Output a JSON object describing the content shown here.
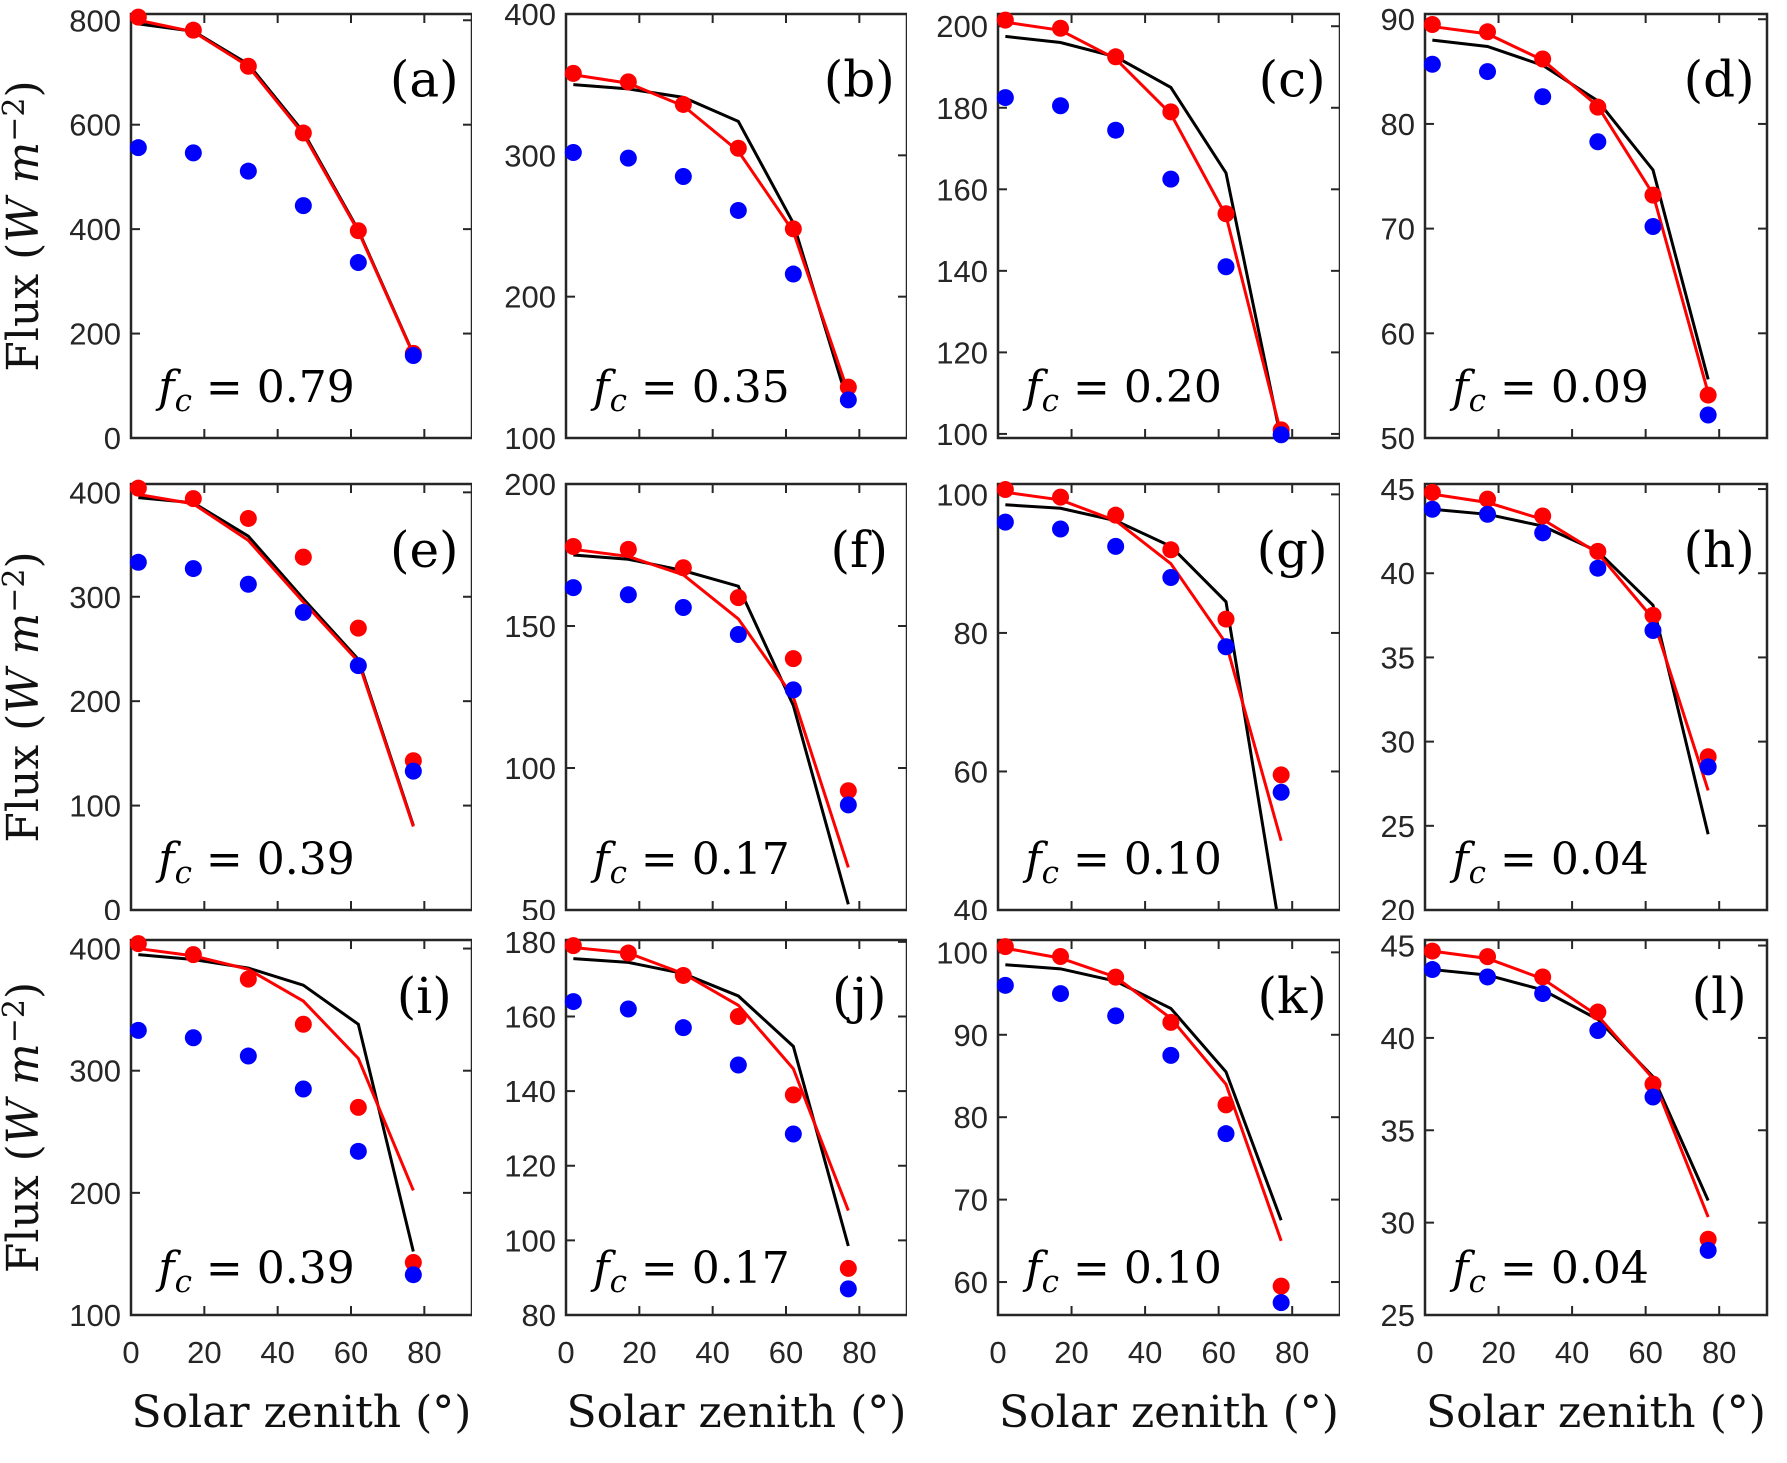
{
  "figure": {
    "description": "3x4 grid of flux versus solar zenith angle panels",
    "colors": {
      "red_series": "#ff0000",
      "blue_series": "#0000ff",
      "black_series": "#000000",
      "axis": "#262626",
      "annotation": "#000000",
      "background": "#ffffff"
    }
  },
  "chart_data": {
    "type": "line+scatter",
    "grid": {
      "rows": 3,
      "cols": 4
    },
    "xlabel": "Solar zenith (°)",
    "ylabel_parts": {
      "pre": "Flux (",
      "italic": "W m",
      "sup": "−2",
      "post": ")"
    },
    "fc_parts": {
      "symbol": "f",
      "subscript": "c",
      "equals": "="
    },
    "x": [
      2,
      17,
      32,
      47,
      62,
      77
    ],
    "xlim": [
      0,
      93
    ],
    "xticks": [
      0,
      20,
      40,
      60,
      80
    ],
    "xtick_labels": [
      "0",
      "20",
      "40",
      "60",
      "80"
    ],
    "series_names": [
      "red_dots",
      "blue_dots",
      "red_line",
      "black_line"
    ],
    "panels": [
      {
        "label": "(a)",
        "fc": "0.79",
        "ylim": [
          0,
          812
        ],
        "yticks": [
          0,
          200,
          400,
          600,
          800
        ],
        "red_dots": [
          806,
          781,
          712,
          584,
          397,
          162
        ],
        "blue_dots": [
          556,
          546,
          511,
          445,
          336,
          158
        ],
        "red_line": [
          800,
          778,
          712,
          582,
          396,
          160
        ],
        "black_line": [
          793,
          779,
          716,
          586,
          398,
          161
        ]
      },
      {
        "label": "(b)",
        "fc": "0.35",
        "ylim": [
          100,
          400
        ],
        "yticks": [
          100,
          200,
          300,
          400
        ],
        "red_dots": [
          358,
          352,
          336,
          305,
          248,
          136
        ],
        "blue_dots": [
          302,
          298,
          285,
          261,
          216,
          127
        ],
        "red_line": [
          357,
          351,
          335,
          303,
          246,
          132
        ],
        "black_line": [
          350,
          347,
          341,
          324,
          252,
          124
        ]
      },
      {
        "label": "(c)",
        "fc": "0.20",
        "ylim": [
          99,
          203
        ],
        "yticks": [
          100,
          120,
          140,
          160,
          180,
          200
        ],
        "red_dots": [
          201.5,
          199.5,
          192.5,
          179,
          154,
          101
        ],
        "blue_dots": [
          182.5,
          180.5,
          174.5,
          162.5,
          141,
          99.8
        ],
        "red_line": [
          201,
          199,
          192,
          178.5,
          153.5,
          100
        ],
        "black_line": [
          197.5,
          196,
          192.5,
          185,
          164,
          98.5
        ]
      },
      {
        "label": "(d)",
        "fc": "0.09",
        "ylim": [
          50,
          90.5
        ],
        "yticks": [
          50,
          60,
          70,
          80,
          90
        ],
        "red_dots": [
          89.5,
          88.8,
          86.2,
          81.6,
          73.2,
          54.1
        ],
        "blue_dots": [
          85.7,
          85,
          82.6,
          78.3,
          70.2,
          52.2
        ],
        "red_line": [
          89.3,
          88.6,
          86.1,
          81.7,
          73.3,
          54.3
        ],
        "black_line": [
          88,
          87.4,
          85.6,
          82.2,
          75.6,
          55.6
        ]
      },
      {
        "label": "(e)",
        "fc": "0.39",
        "ylim": [
          0,
          408
        ],
        "yticks": [
          0,
          100,
          200,
          300,
          400
        ],
        "red_dots": [
          404,
          394,
          375,
          338,
          270,
          143
        ],
        "blue_dots": [
          333,
          327,
          312,
          285,
          234,
          133
        ],
        "red_line": [
          398,
          389,
          354,
          295,
          238,
          80
        ],
        "black_line": [
          395,
          390,
          358,
          298,
          240,
          81
        ]
      },
      {
        "label": "(f)",
        "fc": "0.17",
        "ylim": [
          50,
          200
        ],
        "yticks": [
          50,
          100,
          150,
          200
        ],
        "red_dots": [
          178,
          177,
          170.5,
          160,
          138.5,
          92
        ],
        "blue_dots": [
          163.5,
          161,
          156.5,
          147,
          127.5,
          87
        ],
        "red_line": [
          177,
          174.5,
          168,
          152.5,
          125,
          65
        ],
        "black_line": [
          175,
          173.5,
          169.5,
          164,
          122,
          52
        ]
      },
      {
        "label": "(g)",
        "fc": "0.10",
        "ylim": [
          40,
          101.5
        ],
        "yticks": [
          40,
          60,
          80,
          100
        ],
        "red_dots": [
          100.7,
          99.6,
          97,
          92,
          82,
          59.5
        ],
        "blue_dots": [
          96,
          95,
          92.5,
          88,
          78,
          57
        ],
        "red_line": [
          100.3,
          99.2,
          96.2,
          90,
          78.5,
          50
        ],
        "black_line": [
          98.5,
          98,
          96.2,
          92.5,
          84.5,
          36
        ]
      },
      {
        "label": "(h)",
        "fc": "0.04",
        "ylim": [
          20,
          45.3
        ],
        "yticks": [
          20,
          25,
          30,
          35,
          40,
          45
        ],
        "red_dots": [
          44.8,
          44.4,
          43.4,
          41.3,
          37.5,
          29.1
        ],
        "blue_dots": [
          43.8,
          43.5,
          42.4,
          40.3,
          36.6,
          28.5
        ],
        "red_line": [
          44.7,
          44.2,
          43.2,
          41.2,
          37.3,
          27.1
        ],
        "black_line": [
          43.8,
          43.5,
          42.8,
          41.3,
          38.1,
          24.5
        ]
      },
      {
        "label": "(i)",
        "fc": "0.39",
        "ylim": [
          100,
          407
        ],
        "yticks": [
          100,
          200,
          300,
          400
        ],
        "red_dots": [
          404,
          395,
          375,
          338,
          270,
          143
        ],
        "blue_dots": [
          333,
          327,
          312,
          285,
          234,
          133
        ],
        "red_line": [
          400,
          394,
          383,
          357,
          310,
          202
        ],
        "black_line": [
          395,
          391,
          384,
          370,
          338,
          152
        ]
      },
      {
        "label": "(j)",
        "fc": "0.17",
        "ylim": [
          80,
          180.5
        ],
        "yticks": [
          80,
          100,
          120,
          140,
          160,
          180
        ],
        "red_dots": [
          179,
          177,
          171,
          160,
          139,
          92.5
        ],
        "blue_dots": [
          164,
          162,
          157,
          147,
          128.5,
          87
        ],
        "red_line": [
          178.5,
          177,
          171.5,
          163,
          146,
          108
        ],
        "black_line": [
          175.5,
          174.5,
          171.5,
          165.5,
          152,
          98.5
        ]
      },
      {
        "label": "(k)",
        "fc": "0.10",
        "ylim": [
          56,
          101.5
        ],
        "yticks": [
          60,
          70,
          80,
          90,
          100
        ],
        "red_dots": [
          100.7,
          99.5,
          97,
          91.5,
          81.5,
          59.5
        ],
        "blue_dots": [
          96,
          95,
          92.3,
          87.5,
          78,
          57.5
        ],
        "red_line": [
          100.5,
          99.3,
          97,
          92,
          84,
          65
        ],
        "black_line": [
          98.5,
          98,
          96.5,
          93.2,
          85.5,
          67.5
        ]
      },
      {
        "label": "(l)",
        "fc": "0.04",
        "ylim": [
          25,
          45.3
        ],
        "yticks": [
          25,
          30,
          35,
          40,
          45
        ],
        "red_dots": [
          44.7,
          44.4,
          43.3,
          41.4,
          37.5,
          29.1
        ],
        "blue_dots": [
          43.7,
          43.3,
          42.4,
          40.4,
          36.8,
          28.5
        ],
        "red_line": [
          44.7,
          44.3,
          43.2,
          41.2,
          37.8,
          30.3
        ],
        "black_line": [
          43.7,
          43.4,
          42.6,
          41,
          37.9,
          31.2
        ]
      }
    ]
  }
}
